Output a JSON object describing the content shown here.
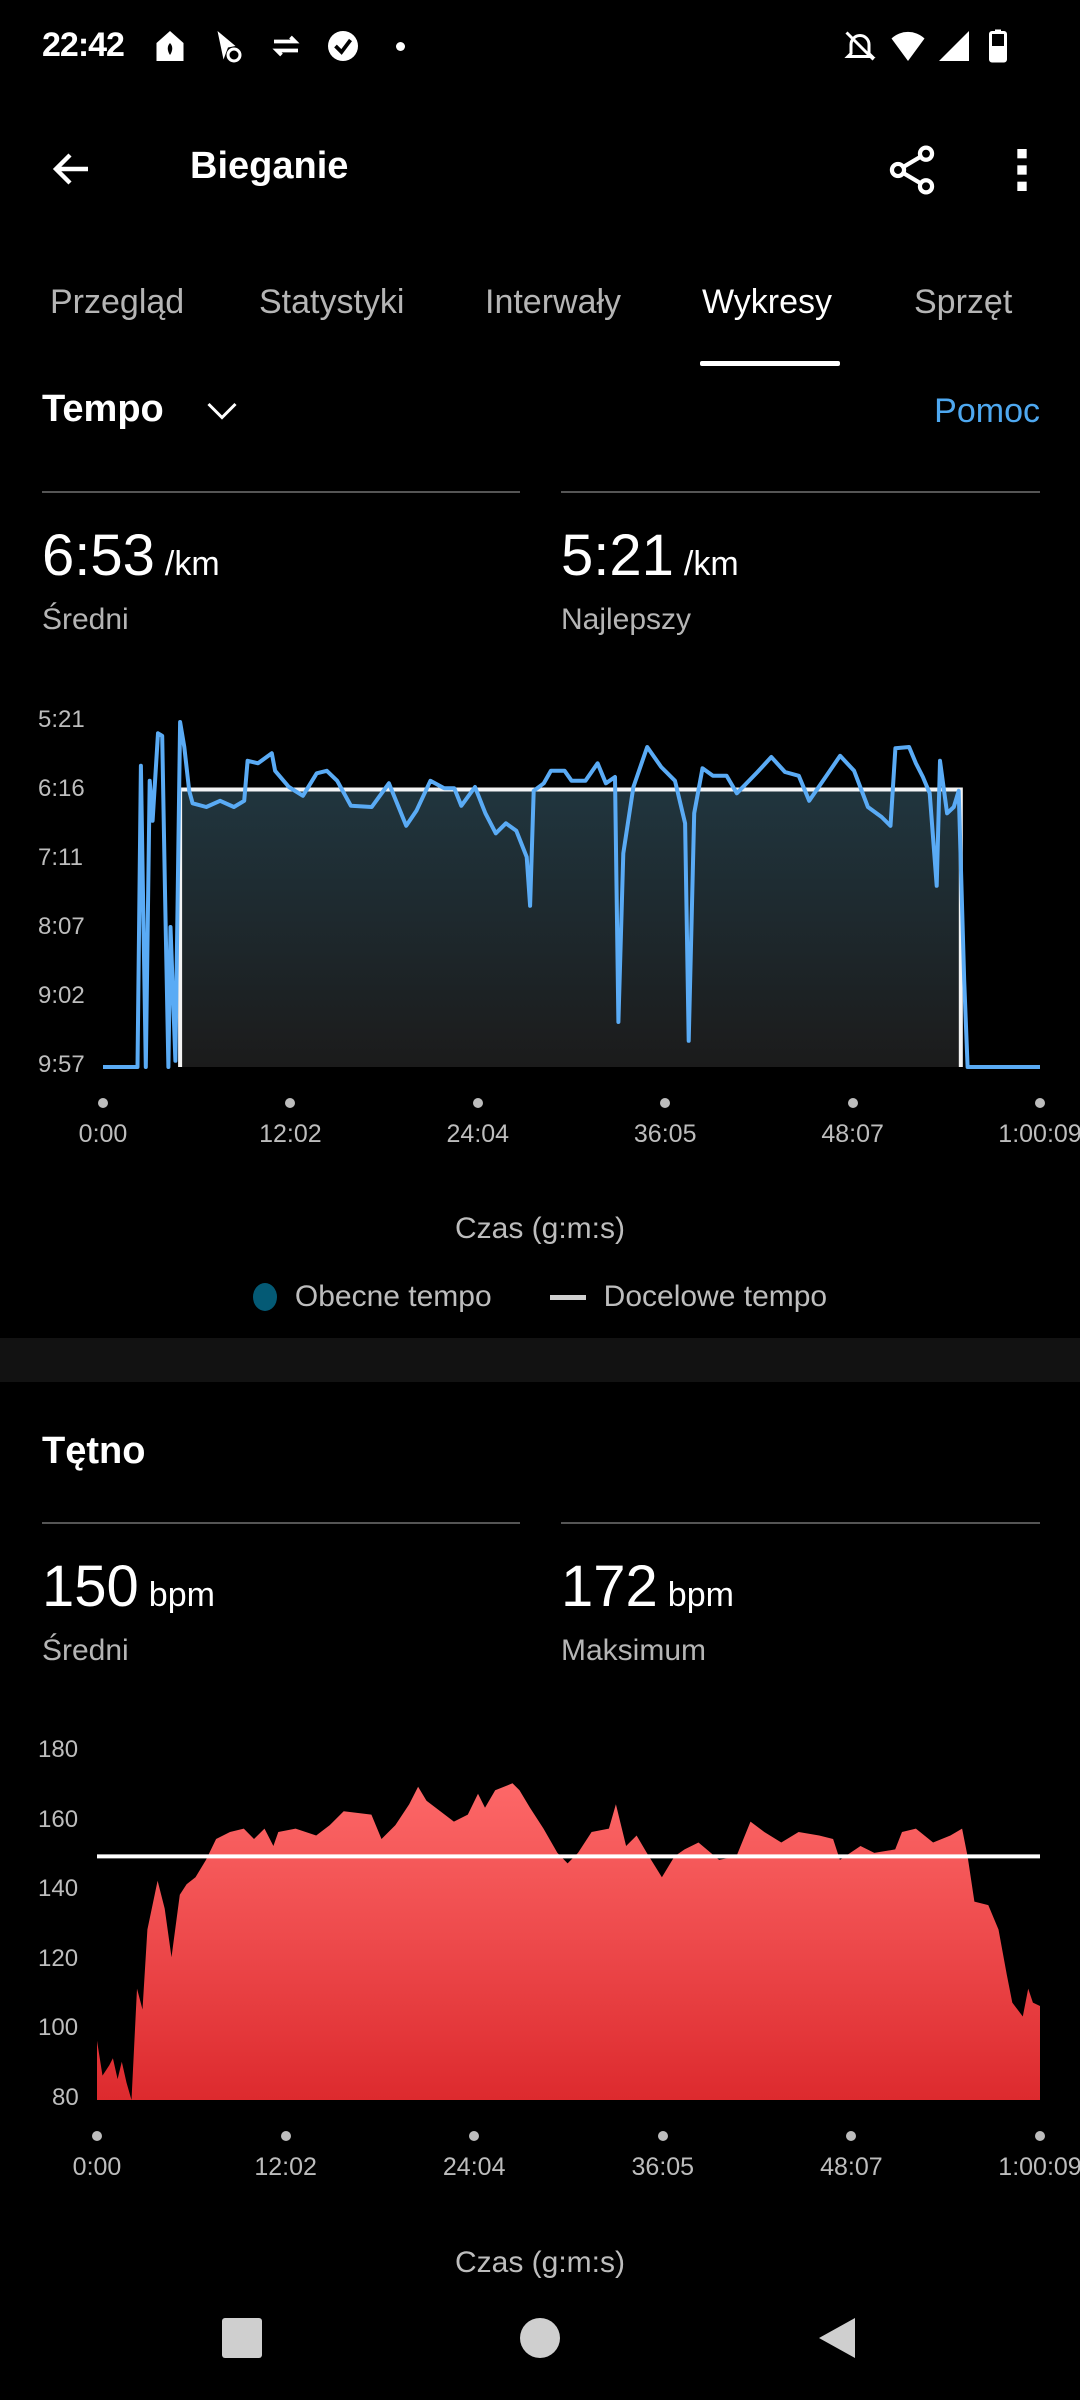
{
  "status_bar": {
    "time": "22:42",
    "left_icons": [
      "home-app-icon",
      "route-app-icon",
      "sync-icon",
      "check-circle-icon",
      "dot-icon"
    ],
    "right_icons": [
      "bell-off-icon",
      "wifi-icon",
      "signal-icon",
      "battery-icon"
    ]
  },
  "app_bar": {
    "title": "Bieganie",
    "back_icon": "arrow-left-icon",
    "share_icon": "share-icon",
    "more_icon": "more-vert-icon"
  },
  "tabs": [
    {
      "label": "Przegląd",
      "active": false
    },
    {
      "label": "Statystyki",
      "active": false
    },
    {
      "label": "Interwały",
      "active": false
    },
    {
      "label": "Wykresy",
      "active": true
    },
    {
      "label": "Sprzęt",
      "active": false
    }
  ],
  "pace_section": {
    "selector": "Tempo",
    "help": "Pomoc",
    "stats": [
      {
        "value": "6:53",
        "unit": "/km",
        "label": "Średni"
      },
      {
        "value": "5:21",
        "unit": "/km",
        "label": "Najlepszy"
      }
    ],
    "legend": [
      {
        "label": "Obecne tempo",
        "color": "#045a75"
      },
      {
        "label": "Docelowe tempo",
        "color": "#d0d0d0"
      }
    ]
  },
  "hr_section": {
    "title": "Tętno",
    "stats": [
      {
        "value": "150",
        "unit": "bpm",
        "label": "Średni"
      },
      {
        "value": "172",
        "unit": "bpm",
        "label": "Maksimum"
      }
    ]
  },
  "chart_data": [
    {
      "type": "line",
      "xlabel": "Czas (g:m:s)",
      "x_ticks": [
        "0:00",
        "12:02",
        "24:04",
        "36:05",
        "48:07",
        "1:00:09"
      ],
      "y_ticks": [
        "5:21",
        "6:16",
        "7:11",
        "8:07",
        "9:02",
        "9:57"
      ],
      "ylim": [
        "5:21",
        "9:57"
      ],
      "xlim": [
        "0:00",
        "60:09"
      ],
      "y_inverted": true,
      "line_color": "#5aabf5",
      "target_color": "#ffffff",
      "series": [
        {
          "name": "Obecne tempo",
          "points": [
            [
              "0:00",
              "9:57"
            ],
            [
              "2:13",
              "9:57"
            ],
            [
              "2:26",
              "5:56"
            ],
            [
              "2:45",
              "9:57"
            ],
            [
              "3:00",
              "6:08"
            ],
            [
              "3:11",
              "6:40"
            ],
            [
              "3:32",
              "5:30"
            ],
            [
              "3:48",
              "5:32"
            ],
            [
              "3:59",
              "7:41"
            ],
            [
              "4:12",
              "9:57"
            ],
            [
              "4:20",
              "8:05"
            ],
            [
              "4:39",
              "9:52"
            ],
            [
              "4:57",
              "5:21"
            ],
            [
              "5:13",
              "5:41"
            ],
            [
              "5:32",
              "6:16"
            ],
            [
              "5:45",
              "6:26"
            ],
            [
              "6:38",
              "6:29"
            ],
            [
              "7:31",
              "6:24"
            ],
            [
              "8:24",
              "6:29"
            ],
            [
              "9:04",
              "6:24"
            ],
            [
              "9:17",
              "5:52"
            ],
            [
              "9:57",
              "5:54"
            ],
            [
              "10:50",
              "5:46"
            ],
            [
              "11:03",
              "6:00"
            ],
            [
              "11:56",
              "6:13"
            ],
            [
              "12:50",
              "6:20"
            ],
            [
              "13:43",
              "6:02"
            ],
            [
              "14:22",
              "6:00"
            ],
            [
              "15:02",
              "6:08"
            ],
            [
              "15:55",
              "6:28"
            ],
            [
              "17:15",
              "6:29"
            ],
            [
              "18:21",
              "6:10"
            ],
            [
              "19:28",
              "6:44"
            ],
            [
              "20:07",
              "6:32"
            ],
            [
              "21:01",
              "6:08"
            ],
            [
              "21:54",
              "6:14"
            ],
            [
              "22:33",
              "6:14"
            ],
            [
              "23:00",
              "6:28"
            ],
            [
              "23:53",
              "6:13"
            ],
            [
              "24:33",
              "6:34"
            ],
            [
              "25:13",
              "6:50"
            ],
            [
              "25:52",
              "6:42"
            ],
            [
              "26:32",
              "6:48"
            ],
            [
              "27:12",
              "7:09"
            ],
            [
              "27:25",
              "7:48"
            ],
            [
              "27:39",
              "6:16"
            ],
            [
              "28:18",
              "6:10"
            ],
            [
              "28:45",
              "6:00"
            ],
            [
              "29:38",
              "6:00"
            ],
            [
              "30:05",
              "6:08"
            ],
            [
              "30:58",
              "6:08"
            ],
            [
              "31:45",
              "5:54"
            ],
            [
              "32:17",
              "6:10"
            ],
            [
              "32:52",
              "6:05"
            ],
            [
              "33:05",
              "9:21"
            ],
            [
              "33:24",
              "7:06"
            ],
            [
              "34:03",
              "6:13"
            ],
            [
              "34:56",
              "5:41"
            ],
            [
              "35:50",
              "5:57"
            ],
            [
              "36:43",
              "6:08"
            ],
            [
              "37:22",
              "6:42"
            ],
            [
              "37:36",
              "9:36"
            ],
            [
              "37:57",
              "6:34"
            ],
            [
              "38:29",
              "5:58"
            ],
            [
              "39:09",
              "6:04"
            ],
            [
              "40:02",
              "6:04"
            ],
            [
              "40:41",
              "6:18"
            ],
            [
              "42:01",
              "6:01"
            ],
            [
              "42:54",
              "5:49"
            ],
            [
              "43:47",
              "6:01"
            ],
            [
              "44:40",
              "6:04"
            ],
            [
              "45:20",
              "6:24"
            ],
            [
              "46:13",
              "6:08"
            ],
            [
              "47:19",
              "5:48"
            ],
            [
              "48:13",
              "6:00"
            ],
            [
              "49:06",
              "6:29"
            ],
            [
              "49:59",
              "6:37"
            ],
            [
              "50:33",
              "6:44"
            ],
            [
              "50:52",
              "5:42"
            ],
            [
              "51:45",
              "5:41"
            ],
            [
              "52:11",
              "5:54"
            ],
            [
              "52:38",
              "6:05"
            ],
            [
              "53:04",
              "6:18"
            ],
            [
              "53:31",
              "7:32"
            ],
            [
              "53:44",
              "5:52"
            ],
            [
              "54:11",
              "6:34"
            ],
            [
              "54:37",
              "6:29"
            ],
            [
              "54:56",
              "6:16"
            ],
            [
              "55:17",
              "8:48"
            ],
            [
              "55:30",
              "9:57"
            ],
            [
              "60:09",
              "9:57"
            ]
          ]
        },
        {
          "name": "Docelowe tempo",
          "pace": "6:15",
          "from": "4:57",
          "to": "55:04"
        }
      ]
    },
    {
      "type": "area",
      "xlabel": "Czas (g:m:s)",
      "x_ticks": [
        "0:00",
        "12:02",
        "24:04",
        "36:05",
        "48:07",
        "1:00:09"
      ],
      "y_ticks": [
        180,
        160,
        140,
        120,
        100,
        80
      ],
      "ylim": [
        80,
        180
      ],
      "xlim": [
        "0:00",
        "60:09"
      ],
      "fill_top": "#fd6868",
      "fill_bottom": "#dd2a2e",
      "reference_line": 150,
      "series": [
        {
          "points": [
            [
              "0:00",
              97
            ],
            [
              "0:21",
              87
            ],
            [
              "0:47",
              90
            ],
            [
              "1:01",
              92
            ],
            [
              "1:19",
              86
            ],
            [
              "1:35",
              91
            ],
            [
              "1:53",
              85
            ],
            [
              "2:12",
              80
            ],
            [
              "2:33",
              112
            ],
            [
              "2:54",
              106
            ],
            [
              "3:13",
              129
            ],
            [
              "3:52",
              143
            ],
            [
              "4:19",
              135
            ],
            [
              "4:45",
              121
            ],
            [
              "5:17",
              139
            ],
            [
              "5:43",
              142
            ],
            [
              "6:17",
              144
            ],
            [
              "6:57",
              149
            ],
            [
              "7:36",
              155
            ],
            [
              "8:29",
              157
            ],
            [
              "9:22",
              158
            ],
            [
              "10:01",
              155
            ],
            [
              "10:41",
              158
            ],
            [
              "11:15",
              153
            ],
            [
              "11:34",
              157
            ],
            [
              "12:40",
              158
            ],
            [
              "13:59",
              156
            ],
            [
              "14:51",
              159
            ],
            [
              "15:44",
              163
            ],
            [
              "17:30",
              162
            ],
            [
              "18:09",
              155
            ],
            [
              "19:02",
              159
            ],
            [
              "19:55",
              165
            ],
            [
              "20:29",
              170
            ],
            [
              "21:01",
              166
            ],
            [
              "21:54",
              163
            ],
            [
              "22:46",
              160
            ],
            [
              "23:39",
              162
            ],
            [
              "24:18",
              168
            ],
            [
              "24:45",
              164
            ],
            [
              "25:24",
              169
            ],
            [
              "26:30",
              171
            ],
            [
              "26:57",
              169
            ],
            [
              "27:37",
              164
            ],
            [
              "28:29",
              158
            ],
            [
              "29:22",
              151
            ],
            [
              "30:01",
              148
            ],
            [
              "30:41",
              151
            ],
            [
              "31:33",
              157
            ],
            [
              "32:39",
              158
            ],
            [
              "33:06",
              165
            ],
            [
              "33:45",
              153
            ],
            [
              "34:25",
              156
            ],
            [
              "35:04",
              151
            ],
            [
              "36:02",
              144
            ],
            [
              "36:50",
              150
            ],
            [
              "37:29",
              152
            ],
            [
              "38:22",
              154
            ],
            [
              "39:41",
              149
            ],
            [
              "40:47",
              150
            ],
            [
              "41:41",
              160
            ],
            [
              "42:34",
              157
            ],
            [
              "43:39",
              154
            ],
            [
              "44:45",
              157
            ],
            [
              "46:04",
              156
            ],
            [
              "46:57",
              155
            ],
            [
              "47:23",
              149
            ],
            [
              "48:42",
              153
            ],
            [
              "49:35",
              151
            ],
            [
              "50:55",
              152
            ],
            [
              "51:21",
              157
            ],
            [
              "52:14",
              158
            ],
            [
              "53:20",
              154
            ],
            [
              "54:26",
              156
            ],
            [
              "55:11",
              158
            ],
            [
              "55:32",
              150
            ],
            [
              "55:58",
              137
            ],
            [
              "56:51",
              136
            ],
            [
              "57:30",
              129
            ],
            [
              "58:02",
              116
            ],
            [
              "58:23",
              108
            ],
            [
              "59:03",
              104
            ],
            [
              "59:24",
              112
            ],
            [
              "59:42",
              108
            ],
            [
              "60:09",
              107
            ]
          ]
        }
      ]
    }
  ],
  "nav_bar": {
    "icons": [
      "recents-square-icon",
      "home-circle-icon",
      "back-triangle-icon"
    ]
  }
}
